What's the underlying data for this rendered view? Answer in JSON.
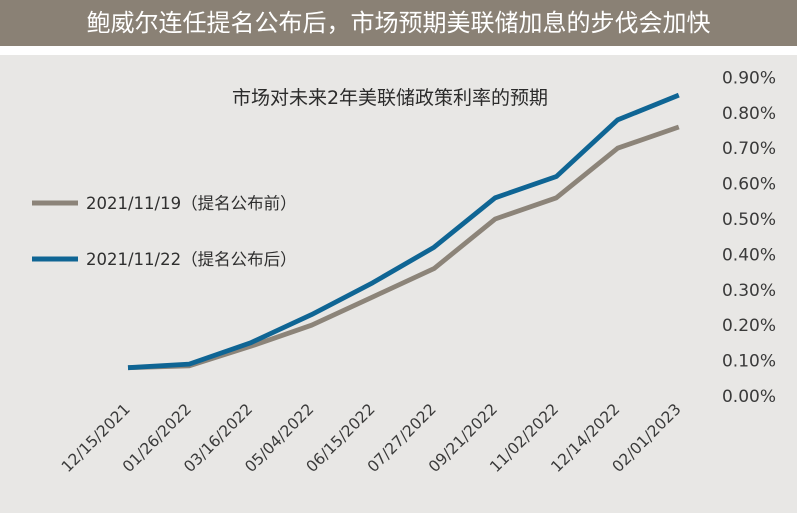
{
  "header": {
    "title": "鲍威尔连任提名公布后，市场预期美联储加息的步伐会加快"
  },
  "colors": {
    "header_bg": "#8a8175",
    "chart_bg": "#e8e7e5"
  },
  "chart_data": {
    "type": "line",
    "title": "市场对未来2年美联储政策利率的预期",
    "xlabel": "",
    "ylabel": "",
    "categories": [
      "12/15/2021",
      "01/26/2022",
      "03/16/2022",
      "05/04/2022",
      "06/15/2022",
      "07/27/2022",
      "09/21/2022",
      "11/02/2022",
      "12/14/2022",
      "02/01/2023"
    ],
    "series": [
      {
        "name": "2021/11/19（提名公布前）",
        "color": "#8c8479",
        "values": [
          0.08,
          0.085,
          0.14,
          0.2,
          0.28,
          0.36,
          0.5,
          0.56,
          0.7,
          0.76
        ]
      },
      {
        "name": "2021/11/22（提名公布后）",
        "color": "#0f6594",
        "values": [
          0.08,
          0.09,
          0.15,
          0.23,
          0.32,
          0.42,
          0.56,
          0.62,
          0.78,
          0.85
        ]
      }
    ],
    "ylim": [
      0,
      0.9
    ],
    "y_ticks": [
      0,
      0.1,
      0.2,
      0.3,
      0.4,
      0.5,
      0.6,
      0.7,
      0.8,
      0.9
    ],
    "y_tick_labels": [
      "0.00%",
      "0.10%",
      "0.20%",
      "0.30%",
      "0.40%",
      "0.50%",
      "0.60%",
      "0.70%",
      "0.80%",
      "0.90%"
    ],
    "y_axis_side": "right",
    "grid": false,
    "legend": "left"
  }
}
